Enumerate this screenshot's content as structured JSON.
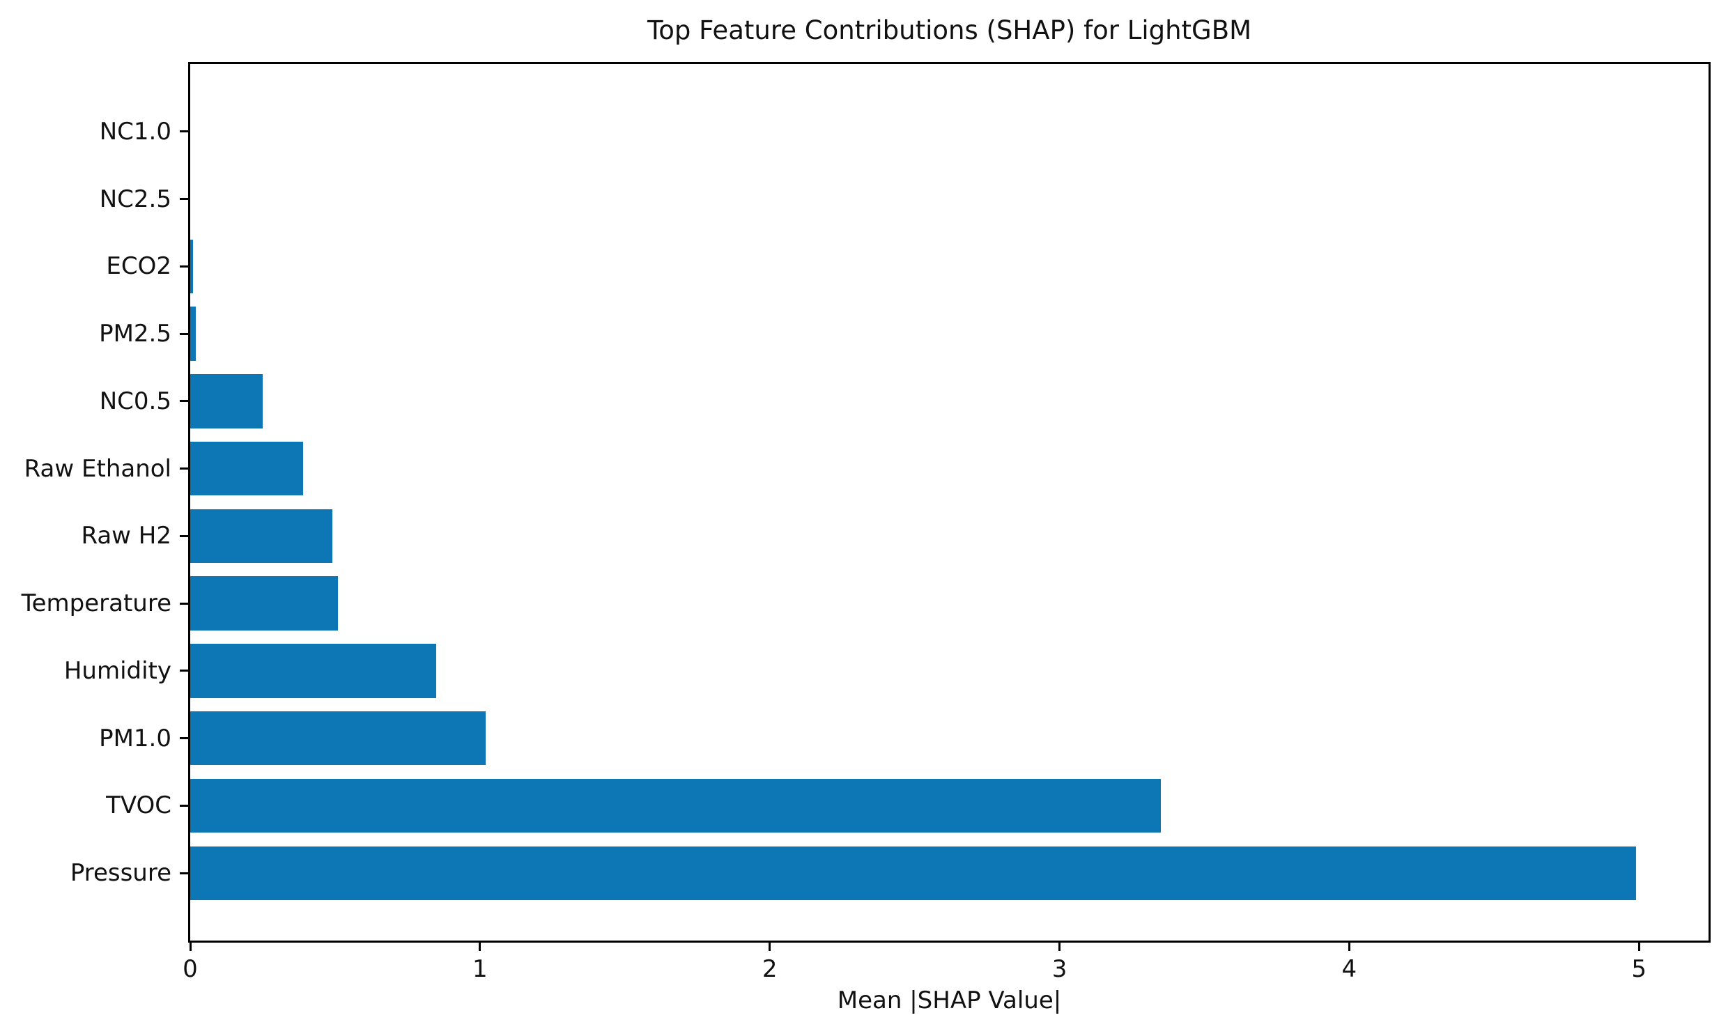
{
  "figure": {
    "background": "#ffffff",
    "text_color": "#111111",
    "spine_color": "#000000"
  },
  "chart_data": {
    "type": "bar",
    "orientation": "horizontal",
    "title": "Top Feature Contributions (SHAP) for LightGBM",
    "xlabel": "Mean |SHAP Value|",
    "ylabel": "",
    "categories_top_to_bottom": [
      "NC1.0",
      "NC2.5",
      "ECO2",
      "PM2.5",
      "NC0.5",
      "Raw Ethanol",
      "Raw H2",
      "Temperature",
      "Humidity",
      "PM1.0",
      "TVOC",
      "Pressure"
    ],
    "values_top_to_bottom": [
      0.0,
      0.0,
      0.01,
      0.02,
      0.25,
      0.39,
      0.49,
      0.51,
      0.85,
      1.02,
      3.35,
      4.99
    ],
    "x_ticks": [
      0,
      1,
      2,
      3,
      4,
      5
    ],
    "xlim": [
      0,
      5.24
    ],
    "bar_color": "#0d76b5",
    "bar_relative_height": 0.8,
    "grid": false,
    "legend": null
  }
}
